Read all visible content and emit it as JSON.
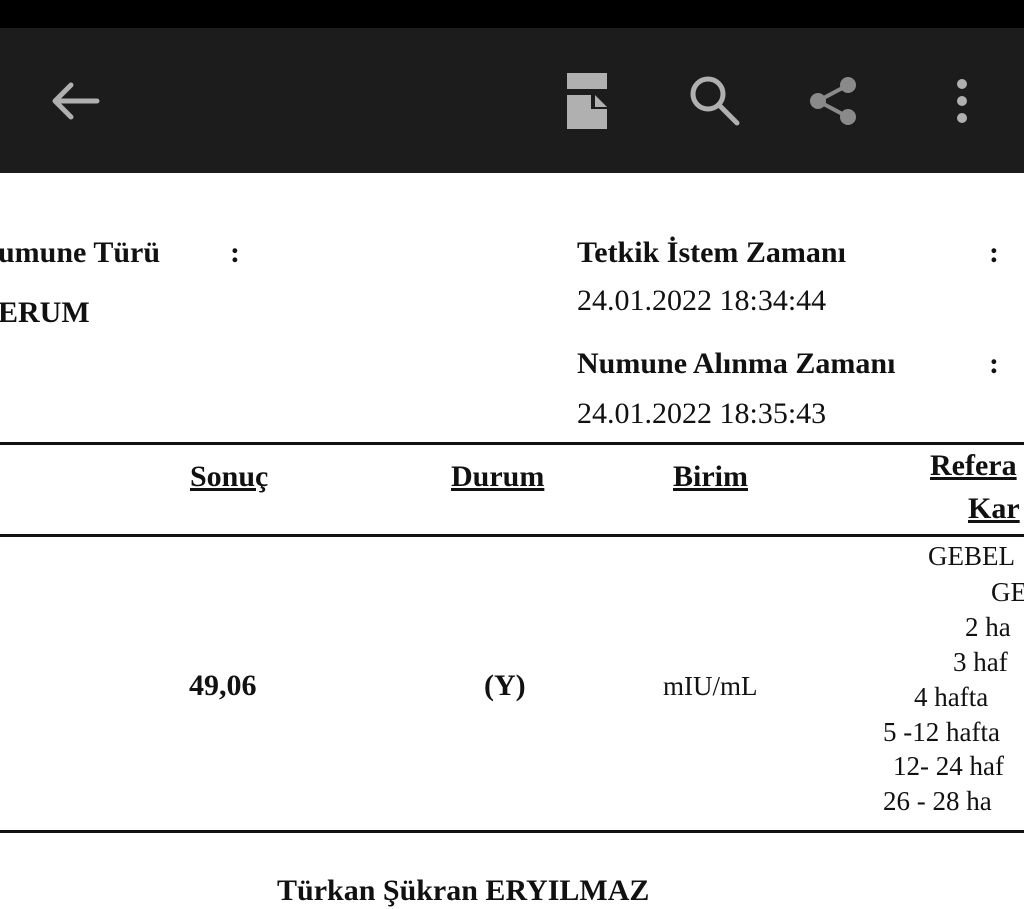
{
  "toolbar": {
    "icons": [
      "arrow-back-icon",
      "document-icon",
      "search-icon",
      "share-icon",
      "more-vert-icon"
    ],
    "color": "#1c1c1c",
    "icon_color": "#b0b0b0"
  },
  "info": {
    "numune_turu_label": "umune Türü",
    "colon": ":",
    "numune_turu_value": "ERUM",
    "istem_label": "Tetkik İstem Zamanı",
    "istem_value": "24.01.2022 18:34:44",
    "alinma_label": "Numune Alınma Zamanı",
    "alinma_value": "24.01.2022 18:35:43"
  },
  "table": {
    "headers": {
      "sonuc": "Sonuç",
      "durum": "Durum",
      "birim": "Birim",
      "referans_1": "Refera",
      "referans_2": "Kar"
    },
    "row": {
      "sonuc": "49,06",
      "durum": "(Y)",
      "birim": "mIU/mL",
      "referans": [
        "GEBEL",
        "GE",
        "2  ha",
        "3  haf",
        "4  hafta",
        "5 -12  hafta",
        "12- 24  haf",
        "26 - 28   ha"
      ]
    }
  },
  "footer": {
    "name": "Türkan Şükran ERYILMAZ"
  }
}
